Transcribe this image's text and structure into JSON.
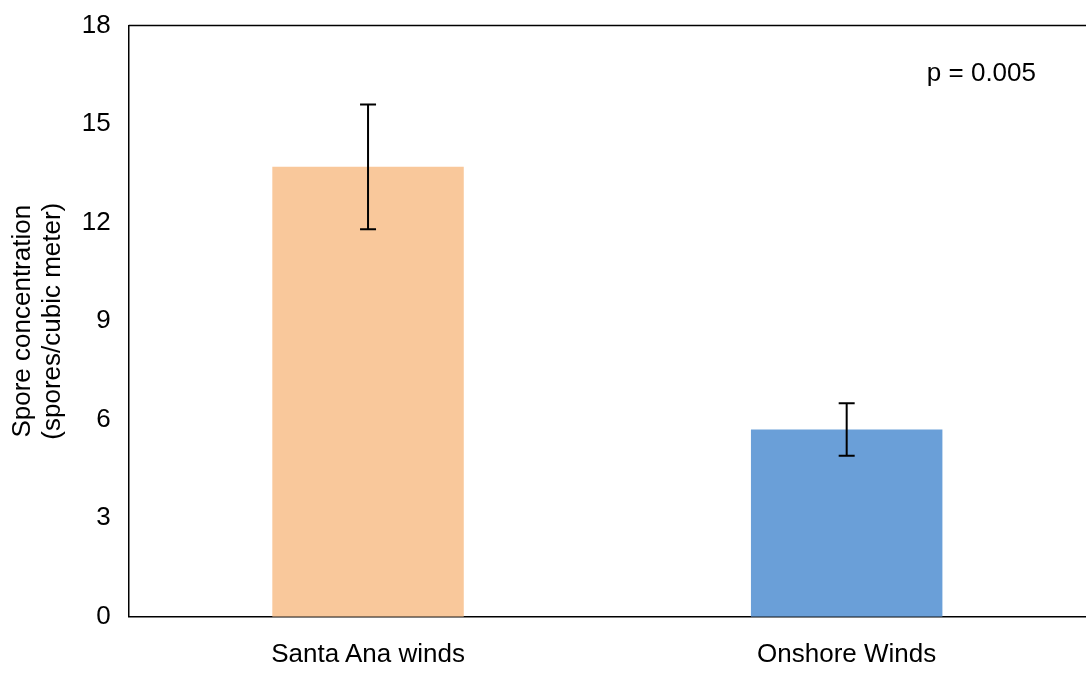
{
  "chart_data": {
    "type": "bar",
    "ylabel": "Spore concentration\n(spores/cubic meter)",
    "categories": [
      "Santa Ana winds",
      "Onshore Winds"
    ],
    "values": [
      13.7,
      5.7
    ],
    "colors": [
      "#f9c89b",
      "#6a9fd8"
    ],
    "errors": [
      1.9,
      0.8
    ],
    "ylim": [
      0,
      18
    ],
    "yticks": [
      0,
      3,
      6,
      9,
      12,
      15,
      18
    ],
    "grid": false,
    "legend": false,
    "annotations": [
      "p = 0.005"
    ]
  }
}
